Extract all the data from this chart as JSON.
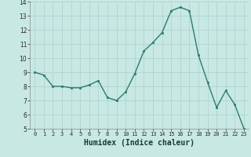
{
  "y": [
    9.0,
    8.8,
    8.0,
    8.0,
    7.9,
    7.9,
    8.1,
    8.4,
    7.2,
    7.0,
    7.6,
    8.9,
    10.5,
    11.1,
    11.8,
    13.35,
    13.6,
    13.35,
    10.2,
    8.3,
    6.5,
    7.7,
    6.7,
    5.0
  ],
  "xlabel": "Humidex (Indice chaleur)",
  "line_color": "#2d7b6e",
  "marker_color": "#2d7b6e",
  "bg_color": "#c8e8e4",
  "grid_color": "#b0d4d0",
  "ylim": [
    5,
    14
  ],
  "xlim_min": -0.5,
  "xlim_max": 23.5,
  "yticks": [
    5,
    6,
    7,
    8,
    9,
    10,
    11,
    12,
    13,
    14
  ],
  "xticks": [
    0,
    1,
    2,
    3,
    4,
    5,
    6,
    7,
    8,
    9,
    10,
    11,
    12,
    13,
    14,
    15,
    16,
    17,
    18,
    19,
    20,
    21,
    22,
    23
  ],
  "xlabel_fontsize": 7,
  "tick_fontsize": 5,
  "linewidth": 1.0,
  "markersize": 2.0
}
